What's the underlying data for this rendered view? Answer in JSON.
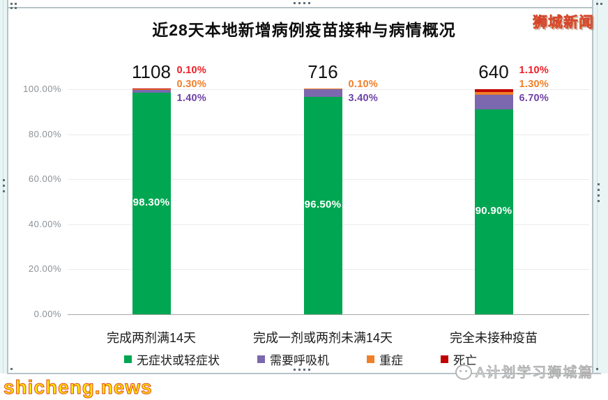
{
  "chart_data": {
    "type": "bar",
    "stacked": true,
    "percent_axis": true,
    "title": "近28天本地新增病例疫苗接种与病情概况",
    "categories": [
      "完成两剂满14天",
      "完成一剂或两剂未满14天",
      "完全未接种疫苗"
    ],
    "totals": [
      "1108",
      "716",
      "640"
    ],
    "series": [
      {
        "name": "无症状或轻症状",
        "color": "#00a651",
        "values": [
          98.3,
          96.5,
          90.9
        ]
      },
      {
        "name": "需要呼吸机",
        "color": "#7b68ae",
        "values": [
          1.4,
          3.4,
          6.7
        ]
      },
      {
        "name": "重症",
        "color": "#f07f29",
        "values": [
          0.3,
          0.1,
          1.3
        ]
      },
      {
        "name": "死亡",
        "color": "#c00000",
        "values": [
          0.1,
          0,
          1.1
        ]
      }
    ],
    "inside_labels": [
      "98.30%",
      "96.50%",
      "90.90%"
    ],
    "side_labels": [
      [
        {
          "series": "死亡",
          "text": "0.10%"
        },
        {
          "series": "重症",
          "text": "0.30%"
        },
        {
          "series": "需要呼吸机",
          "text": "1.40%"
        }
      ],
      [
        {
          "series": "重症",
          "text": "0.10%"
        },
        {
          "series": "需要呼吸机",
          "text": "3.40%"
        }
      ],
      [
        {
          "series": "死亡",
          "text": "1.10%"
        },
        {
          "series": "重症",
          "text": "1.30%"
        },
        {
          "series": "需要呼吸机",
          "text": "6.70%"
        }
      ]
    ],
    "label_colors": {
      "死亡": "#ee1c25",
      "重症": "#f07f29",
      "需要呼吸机": "#6f42a8"
    },
    "y_ticks": [
      "100.00%",
      "80.00%",
      "60.00%",
      "40.00%",
      "20.00%",
      "0.00%"
    ],
    "ylim": [
      0,
      100
    ],
    "grid": true,
    "legend_position": "bottom"
  },
  "watermarks": {
    "top_right": "狮城新闻",
    "bottom_left": "shicheng.news",
    "bottom_right": "A计划学习狮城篇"
  }
}
